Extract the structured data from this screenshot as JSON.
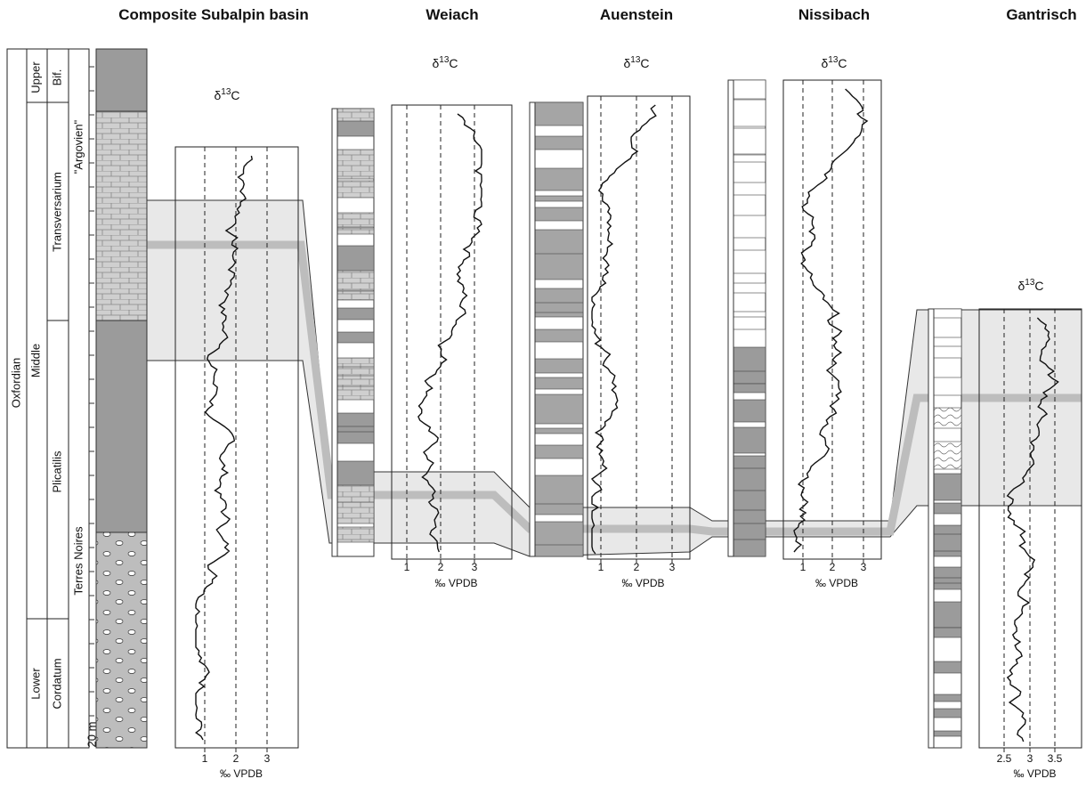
{
  "figure": {
    "isotope_label": {
      "symbol": "δ",
      "mass": "13",
      "element": "C"
    },
    "unit": "‰ VPDB",
    "panels": [
      {
        "title": "Composite Subalpin basin",
        "ticks": [
          "1",
          "2",
          "3"
        ]
      },
      {
        "title": "Weiach",
        "ticks": [
          "1",
          "2",
          "3"
        ]
      },
      {
        "title": "Auenstein",
        "ticks": [
          "1",
          "2",
          "3"
        ]
      },
      {
        "title": "Nissibach",
        "ticks": [
          "1",
          "2",
          "3"
        ]
      },
      {
        "title": "Gantrisch",
        "ticks": [
          "2.5",
          "3",
          "3.5"
        ]
      }
    ],
    "stratigraphy": {
      "stage": "Oxfordian",
      "substages": [
        "Upper",
        "Middle",
        "Lower"
      ],
      "zones": [
        "Bif.",
        "Transversarium",
        "Plicatilis",
        "Cordatum"
      ],
      "formations": [
        "\"Argovien\"",
        "Terres Noires"
      ],
      "scale": "20 m"
    }
  }
}
